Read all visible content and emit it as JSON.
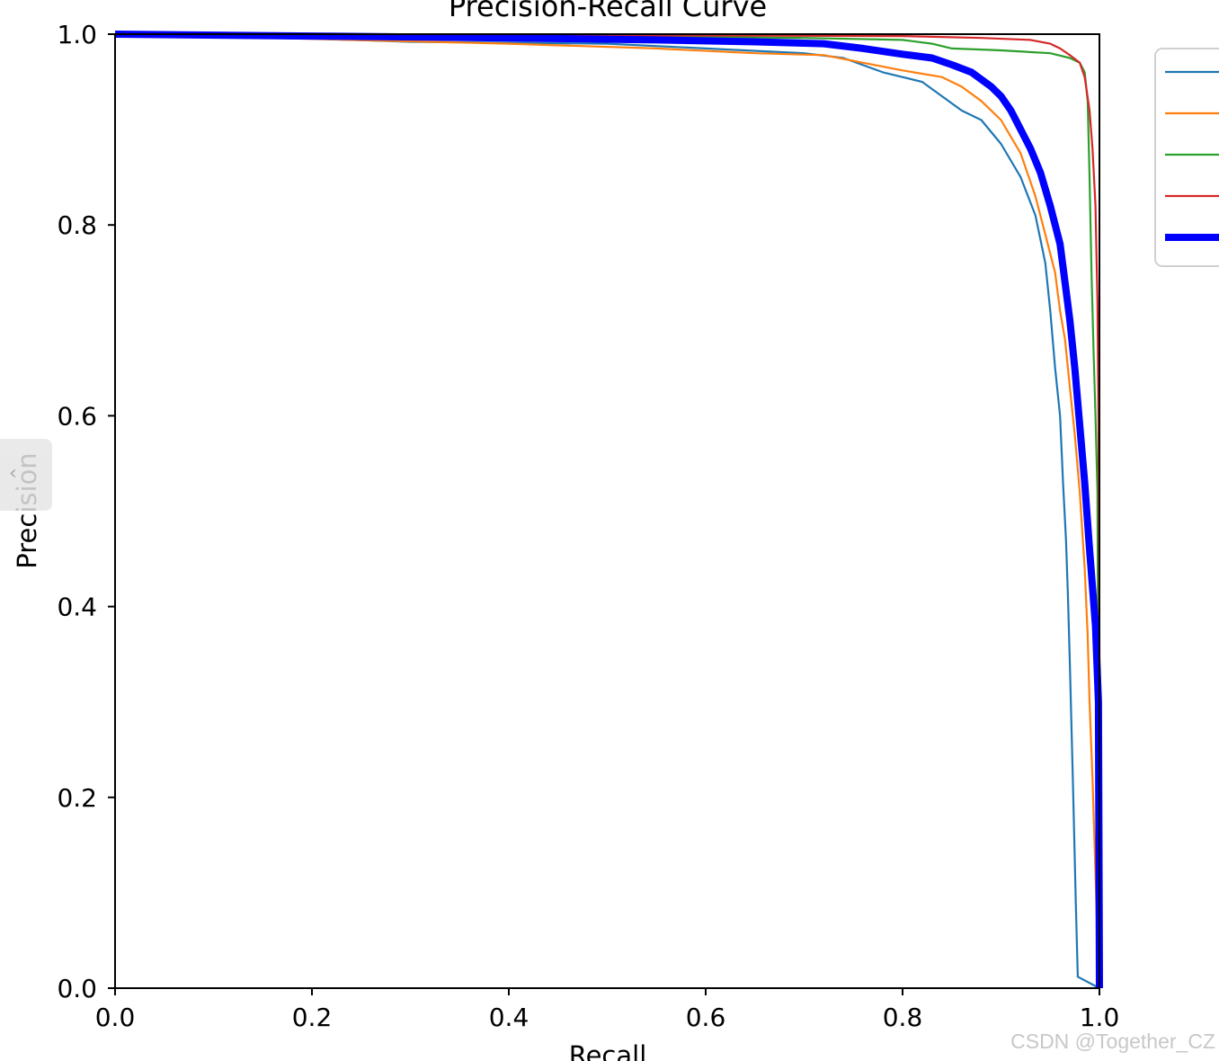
{
  "chart_data": {
    "type": "line",
    "title": "Precision-Recall Curve",
    "xlabel": "Recall",
    "ylabel": "Precision",
    "xlim": [
      0.0,
      1.0
    ],
    "ylim": [
      0.0,
      1.0
    ],
    "xticks": [
      "0.0",
      "0.2",
      "0.4",
      "0.6",
      "0.8",
      "1.0"
    ],
    "yticks": [
      "0.0",
      "0.2",
      "0.4",
      "0.6",
      "0.8",
      "1.0"
    ],
    "grid": false,
    "legend_position": "outside-right",
    "series": [
      {
        "color": "#1f77b4",
        "points": [
          [
            0.0,
            1.0
          ],
          [
            0.15,
            0.997
          ],
          [
            0.3,
            0.992
          ],
          [
            0.5,
            0.99
          ],
          [
            0.6,
            0.985
          ],
          [
            0.7,
            0.98
          ],
          [
            0.74,
            0.975
          ],
          [
            0.78,
            0.96
          ],
          [
            0.82,
            0.95
          ],
          [
            0.86,
            0.92
          ],
          [
            0.88,
            0.91
          ],
          [
            0.9,
            0.885
          ],
          [
            0.92,
            0.85
          ],
          [
            0.935,
            0.81
          ],
          [
            0.945,
            0.76
          ],
          [
            0.95,
            0.71
          ],
          [
            0.955,
            0.65
          ],
          [
            0.96,
            0.6
          ],
          [
            0.963,
            0.53
          ],
          [
            0.966,
            0.47
          ],
          [
            0.968,
            0.41
          ],
          [
            0.97,
            0.34
          ],
          [
            0.973,
            0.22
          ],
          [
            0.976,
            0.09
          ],
          [
            0.978,
            0.012
          ],
          [
            1.0,
            0.0
          ]
        ]
      },
      {
        "color": "#ff7f0e",
        "points": [
          [
            0.0,
            1.0
          ],
          [
            0.2,
            0.995
          ],
          [
            0.4,
            0.99
          ],
          [
            0.55,
            0.985
          ],
          [
            0.65,
            0.98
          ],
          [
            0.72,
            0.978
          ],
          [
            0.76,
            0.97
          ],
          [
            0.8,
            0.962
          ],
          [
            0.84,
            0.955
          ],
          [
            0.86,
            0.945
          ],
          [
            0.88,
            0.93
          ],
          [
            0.9,
            0.91
          ],
          [
            0.92,
            0.875
          ],
          [
            0.935,
            0.83
          ],
          [
            0.945,
            0.79
          ],
          [
            0.955,
            0.75
          ],
          [
            0.96,
            0.71
          ],
          [
            0.965,
            0.68
          ],
          [
            0.97,
            0.63
          ],
          [
            0.975,
            0.58
          ],
          [
            0.98,
            0.52
          ],
          [
            0.985,
            0.44
          ],
          [
            0.988,
            0.37
          ],
          [
            0.99,
            0.3
          ],
          [
            0.993,
            0.22
          ],
          [
            0.996,
            0.12
          ],
          [
            0.998,
            0.05
          ],
          [
            1.0,
            0.003
          ]
        ]
      },
      {
        "color": "#2ca02c",
        "points": [
          [
            0.0,
            1.0
          ],
          [
            0.4,
            0.998
          ],
          [
            0.6,
            0.997
          ],
          [
            0.7,
            0.996
          ],
          [
            0.8,
            0.994
          ],
          [
            0.83,
            0.99
          ],
          [
            0.85,
            0.985
          ],
          [
            0.9,
            0.983
          ],
          [
            0.95,
            0.98
          ],
          [
            0.97,
            0.975
          ],
          [
            0.98,
            0.97
          ],
          [
            0.985,
            0.96
          ],
          [
            0.988,
            0.93
          ],
          [
            0.99,
            0.85
          ],
          [
            0.992,
            0.75
          ],
          [
            0.994,
            0.67
          ],
          [
            0.996,
            0.6
          ],
          [
            0.998,
            0.52
          ],
          [
            1.0,
            0.0
          ]
        ]
      },
      {
        "color": "#d62728",
        "points": [
          [
            0.0,
            1.0
          ],
          [
            0.5,
            0.999
          ],
          [
            0.8,
            0.998
          ],
          [
            0.88,
            0.996
          ],
          [
            0.93,
            0.994
          ],
          [
            0.95,
            0.99
          ],
          [
            0.96,
            0.985
          ],
          [
            0.97,
            0.978
          ],
          [
            0.98,
            0.97
          ],
          [
            0.985,
            0.955
          ],
          [
            0.99,
            0.92
          ],
          [
            0.993,
            0.88
          ],
          [
            0.996,
            0.82
          ],
          [
            0.998,
            0.72
          ],
          [
            0.999,
            0.6
          ],
          [
            1.0,
            0.35
          ],
          [
            1.0,
            0.0
          ]
        ]
      },
      {
        "color": "#0000ff",
        "points": [
          [
            0.0,
            1.0
          ],
          [
            0.2,
            0.998
          ],
          [
            0.4,
            0.996
          ],
          [
            0.55,
            0.994
          ],
          [
            0.65,
            0.992
          ],
          [
            0.72,
            0.99
          ],
          [
            0.76,
            0.985
          ],
          [
            0.8,
            0.979
          ],
          [
            0.83,
            0.975
          ],
          [
            0.85,
            0.968
          ],
          [
            0.87,
            0.96
          ],
          [
            0.89,
            0.945
          ],
          [
            0.9,
            0.935
          ],
          [
            0.91,
            0.92
          ],
          [
            0.92,
            0.9
          ],
          [
            0.93,
            0.88
          ],
          [
            0.94,
            0.855
          ],
          [
            0.95,
            0.82
          ],
          [
            0.96,
            0.78
          ],
          [
            0.965,
            0.74
          ],
          [
            0.97,
            0.7
          ],
          [
            0.975,
            0.65
          ],
          [
            0.98,
            0.59
          ],
          [
            0.985,
            0.53
          ],
          [
            0.99,
            0.46
          ],
          [
            0.993,
            0.42
          ],
          [
            0.996,
            0.38
          ],
          [
            0.999,
            0.3
          ],
          [
            1.0,
            0.0
          ]
        ],
        "thick": true
      }
    ]
  },
  "overlay": {
    "side_tab_icon": "chevron-left-icon",
    "side_tab_glyph": "‹",
    "watermark": "CSDN @Together_CZ"
  }
}
